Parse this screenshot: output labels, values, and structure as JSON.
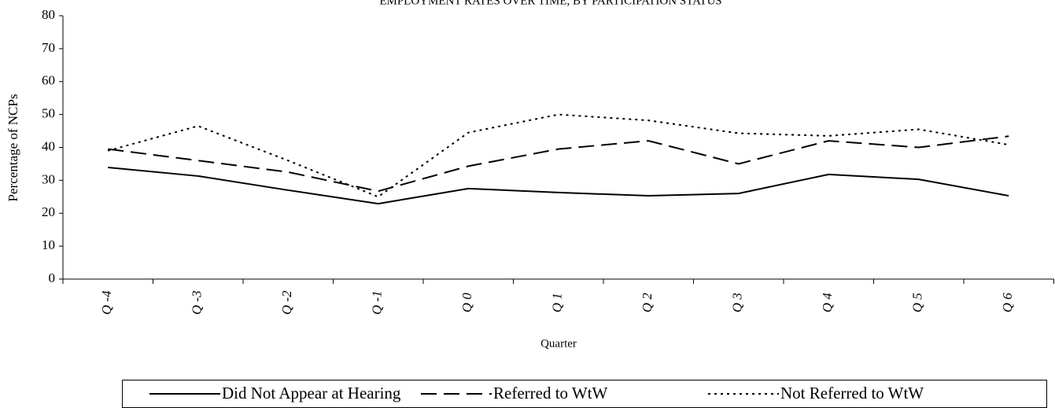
{
  "chart_data": {
    "type": "line",
    "title": "EMPLOYMENT RATES OVER TIME, BY PARTICIPATION STATUS",
    "x_label": "Quarter",
    "y_label": "Percentage of NCPs",
    "categories": [
      "Q -4",
      "Q -3",
      "Q -2",
      "Q -1",
      "Q 0",
      "Q 1",
      "Q 2",
      "Q 3",
      "Q 4",
      "Q 5",
      "Q 6"
    ],
    "series": [
      {
        "name": "Did Not Appear at Hearing",
        "color": "#000000",
        "dash": "solid",
        "values": [
          33.9,
          31.3,
          27,
          22.9,
          27.5,
          26.3,
          25.3,
          26,
          31.8,
          30.3,
          25.3
        ]
      },
      {
        "name": "Referred to WtW",
        "color": "#000000",
        "dash": "dashed",
        "values": [
          39.5,
          36,
          32.5,
          26.7,
          34.3,
          39.5,
          42,
          35,
          42,
          40,
          43.4
        ]
      },
      {
        "name": "Not Referred to WtW",
        "color": "#000000",
        "dash": "dotted",
        "values": [
          39,
          46.5,
          36,
          25,
          44.5,
          50,
          48.2,
          44.3,
          43.5,
          45.5,
          40.8
        ]
      }
    ],
    "ylim": [
      0,
      80
    ],
    "yticks": [
      0,
      10,
      20,
      30,
      40,
      50,
      60,
      70,
      80
    ],
    "grid": false,
    "legend": "bottom"
  }
}
